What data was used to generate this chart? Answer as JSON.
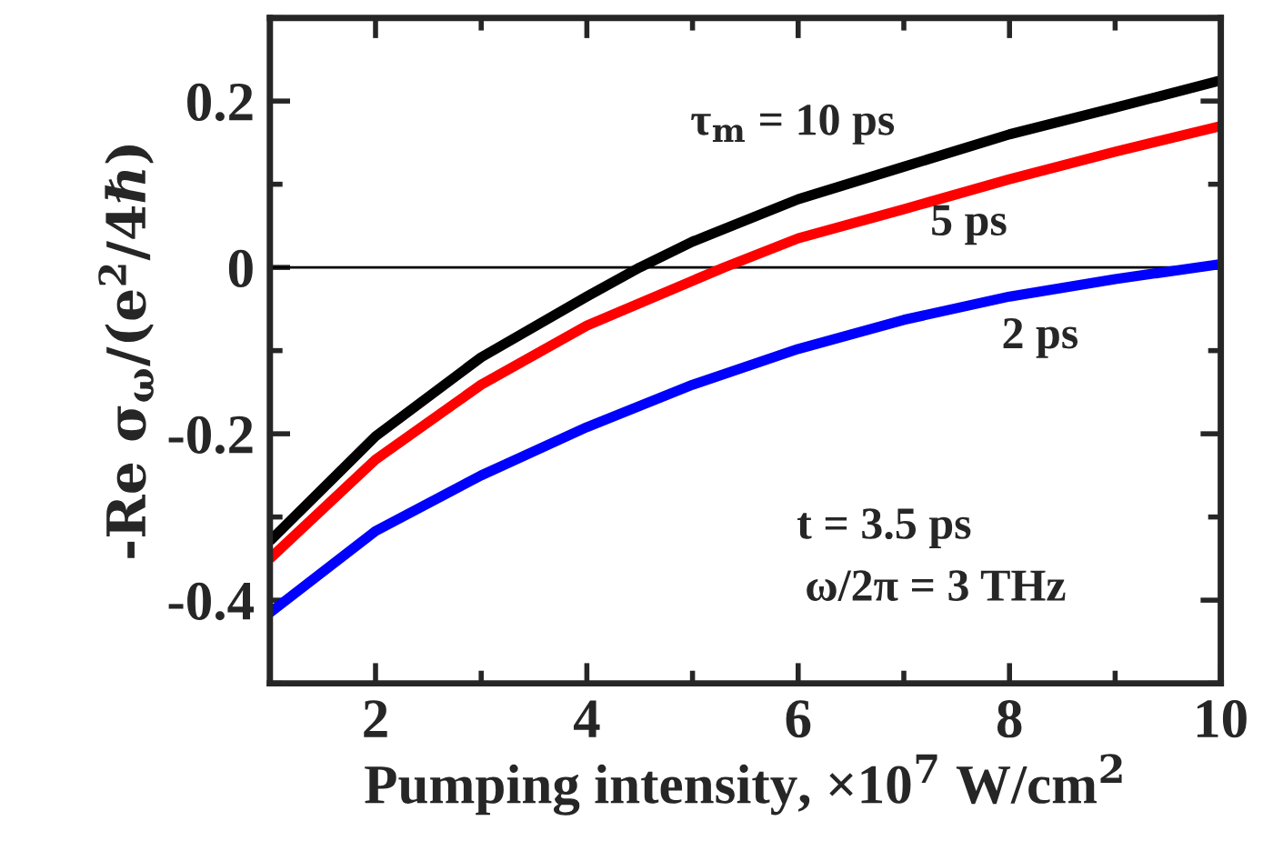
{
  "chart_data": {
    "type": "line",
    "xlabel": "Pumping intensity, ×10$^{7}$ W/cm$^{2}$",
    "ylabel": "-Re σ$_{ω}$/(e$^{2}$/4ℏ)",
    "series": [
      {
        "name": "τ$_{m}$ = 10 ps",
        "color": "#000000",
        "x": [
          1,
          2,
          3,
          4,
          4.5,
          5,
          6,
          7,
          8,
          9,
          10
        ],
        "values": [
          -0.329,
          -0.203,
          -0.108,
          -0.035,
          0.0,
          0.031,
          0.082,
          0.121,
          0.16,
          0.192,
          0.225
        ]
      },
      {
        "name": "5 ps",
        "color": "#ff0000",
        "x": [
          1,
          2,
          3,
          4,
          5,
          5.3,
          6,
          7,
          8,
          9,
          10
        ],
        "values": [
          -0.35,
          -0.231,
          -0.141,
          -0.07,
          -0.016,
          0.0,
          0.035,
          0.07,
          0.106,
          0.139,
          0.17
        ]
      },
      {
        "name": "2 ps",
        "color": "#0000ff",
        "x": [
          1,
          2,
          3,
          4,
          5,
          6,
          7,
          8,
          9,
          10
        ],
        "values": [
          -0.415,
          -0.317,
          -0.25,
          -0.192,
          -0.141,
          -0.098,
          -0.063,
          -0.035,
          -0.014,
          0.004
        ]
      }
    ],
    "annotations": [
      "t = 3.5 ps",
      "ω/2π = 3 THz"
    ],
    "ref_lines": [
      {
        "axis": "y",
        "value": 0,
        "color": "#000000"
      }
    ],
    "xlim": [
      1,
      10
    ],
    "xticks": [
      2,
      4,
      6,
      8,
      10
    ],
    "ylim": [
      -0.5,
      0.3
    ],
    "yticks": [
      {
        "value": -0.4,
        "label": "-0.4"
      },
      {
        "value": -0.2,
        "label": "-0.2"
      },
      0,
      0.2
    ],
    "grid": false,
    "legend": false,
    "marker": "none",
    "line_style": "solid"
  }
}
